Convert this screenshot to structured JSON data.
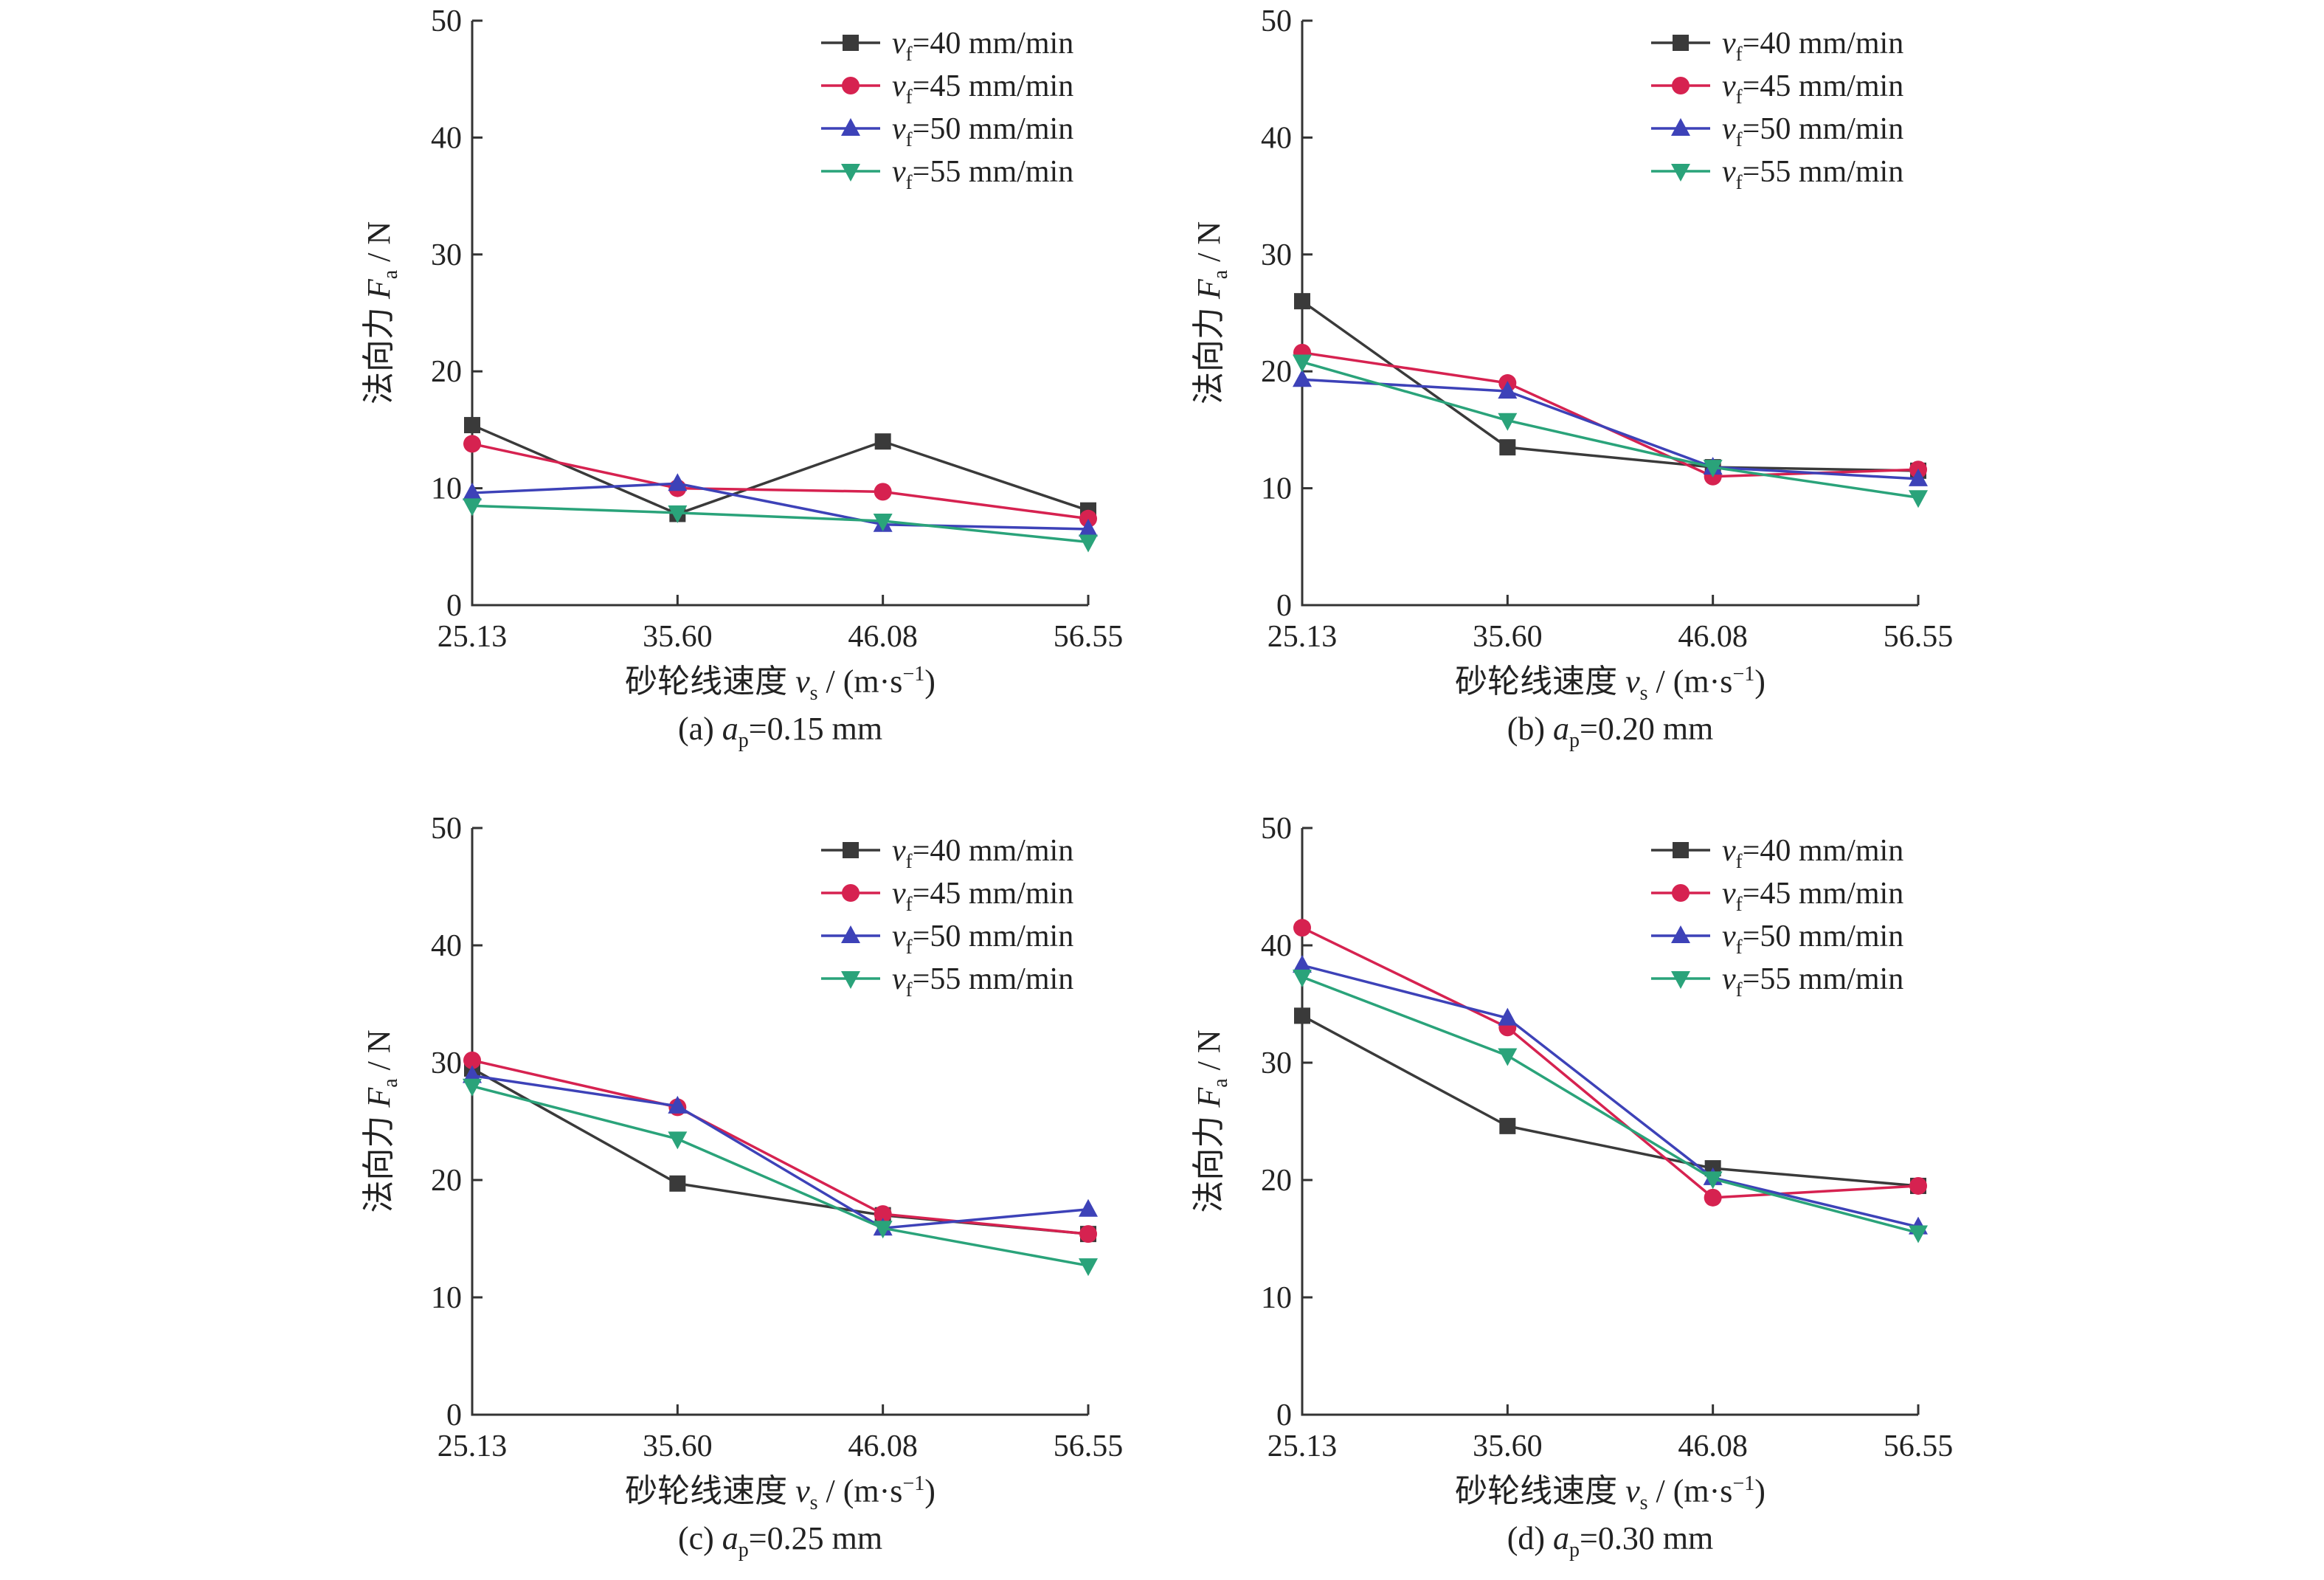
{
  "chart_data": [
    {
      "type": "line",
      "caption": {
        "prefix": "(a) ",
        "var": "a",
        "sub": "p",
        "rest": "=0.15 mm"
      },
      "x": [
        "25.13",
        "35.60",
        "46.08",
        "56.55"
      ],
      "ylim": [
        0,
        50
      ],
      "yticks": [
        "0",
        "10",
        "20",
        "30",
        "40",
        "50"
      ],
      "xlabel": {
        "text": "砂轮线速度 ",
        "var": "v",
        "sub": "s",
        "unit": " / (m·s",
        "sup": "−1",
        "close": ")"
      },
      "ylabel": {
        "text": "法向力 ",
        "var": "F",
        "sub": "a",
        "unit": " / N"
      },
      "legend_position": "top-right",
      "grid": false,
      "series": [
        {
          "name": "vf=40 mm/min",
          "values": [
            15.4,
            7.8,
            14.0,
            8.1
          ]
        },
        {
          "name": "vf=45 mm/min",
          "values": [
            13.8,
            10.0,
            9.7,
            7.4
          ]
        },
        {
          "name": "vf=50 mm/min",
          "values": [
            9.6,
            10.4,
            6.9,
            6.5
          ]
        },
        {
          "name": "vf=55 mm/min",
          "values": [
            8.5,
            7.9,
            7.2,
            5.4
          ]
        }
      ]
    },
    {
      "type": "line",
      "caption": {
        "prefix": "(b) ",
        "var": "a",
        "sub": "p",
        "rest": "=0.20 mm"
      },
      "x": [
        "25.13",
        "35.60",
        "46.08",
        "56.55"
      ],
      "ylim": [
        0,
        50
      ],
      "yticks": [
        "0",
        "10",
        "20",
        "30",
        "40",
        "50"
      ],
      "xlabel": {
        "text": "砂轮线速度 ",
        "var": "v",
        "sub": "s",
        "unit": " / (m·s",
        "sup": "−1",
        "close": ")"
      },
      "ylabel": {
        "text": "法向力 ",
        "var": "F",
        "sub": "a",
        "unit": " / N"
      },
      "legend_position": "top-right",
      "grid": false,
      "series": [
        {
          "name": "vf=40 mm/min",
          "values": [
            26.0,
            13.5,
            11.8,
            11.5
          ]
        },
        {
          "name": "vf=45 mm/min",
          "values": [
            21.6,
            19.0,
            11.0,
            11.6
          ]
        },
        {
          "name": "vf=50 mm/min",
          "values": [
            19.3,
            18.3,
            11.8,
            10.8
          ]
        },
        {
          "name": "vf=55 mm/min",
          "values": [
            20.8,
            15.8,
            11.8,
            9.2
          ]
        }
      ]
    },
    {
      "type": "line",
      "caption": {
        "prefix": "(c) ",
        "var": "a",
        "sub": "p",
        "rest": "=0.25 mm"
      },
      "x": [
        "25.13",
        "35.60",
        "46.08",
        "56.55"
      ],
      "ylim": [
        0,
        50
      ],
      "yticks": [
        "0",
        "10",
        "20",
        "30",
        "40",
        "50"
      ],
      "xlabel": {
        "text": "砂轮线速度 ",
        "var": "v",
        "sub": "s",
        "unit": " / (m·s",
        "sup": "−1",
        "close": ")"
      },
      "ylabel": {
        "text": "法向力 ",
        "var": "F",
        "sub": "a",
        "unit": " / N"
      },
      "legend_position": "top-right",
      "grid": false,
      "series": [
        {
          "name": "vf=40 mm/min",
          "values": [
            29.5,
            19.7,
            17.0,
            15.4
          ]
        },
        {
          "name": "vf=45 mm/min",
          "values": [
            30.2,
            26.2,
            17.1,
            15.4
          ]
        },
        {
          "name": "vf=50 mm/min",
          "values": [
            28.9,
            26.3,
            15.9,
            17.5
          ]
        },
        {
          "name": "vf=55 mm/min",
          "values": [
            28.0,
            23.5,
            15.9,
            12.7
          ]
        }
      ]
    },
    {
      "type": "line",
      "caption": {
        "prefix": "(d) ",
        "var": "a",
        "sub": "p",
        "rest": "=0.30 mm"
      },
      "x": [
        "25.13",
        "35.60",
        "46.08",
        "56.55"
      ],
      "ylim": [
        0,
        50
      ],
      "yticks": [
        "0",
        "10",
        "20",
        "30",
        "40",
        "50"
      ],
      "xlabel": {
        "text": "砂轮线速度 ",
        "var": "v",
        "sub": "s",
        "unit": " / (m·s",
        "sup": "−1",
        "close": ")"
      },
      "ylabel": {
        "text": "法向力 ",
        "var": "F",
        "sub": "a",
        "unit": " / N"
      },
      "legend_position": "top-right",
      "grid": false,
      "series": [
        {
          "name": "vf=40 mm/min",
          "values": [
            34.0,
            24.6,
            21.0,
            19.5
          ]
        },
        {
          "name": "vf=45 mm/min",
          "values": [
            41.5,
            33.0,
            18.5,
            19.5
          ]
        },
        {
          "name": "vf=50 mm/min",
          "values": [
            38.3,
            33.8,
            20.2,
            16.0
          ]
        },
        {
          "name": "vf=55 mm/min",
          "values": [
            37.3,
            30.6,
            20.1,
            15.5
          ]
        }
      ]
    }
  ],
  "legend_entries": [
    {
      "var": "v",
      "sub": "f",
      "rest": "=40 mm/min"
    },
    {
      "var": "v",
      "sub": "f",
      "rest": "=45 mm/min"
    },
    {
      "var": "v",
      "sub": "f",
      "rest": "=50 mm/min"
    },
    {
      "var": "v",
      "sub": "f",
      "rest": "=55 mm/min"
    }
  ],
  "series_style": [
    {
      "color": "#3a3a3a",
      "marker": "square"
    },
    {
      "color": "#d62250",
      "marker": "circle"
    },
    {
      "color": "#3d42b8",
      "marker": "triangle-up"
    },
    {
      "color": "#2aa37a",
      "marker": "triangle-down"
    }
  ]
}
